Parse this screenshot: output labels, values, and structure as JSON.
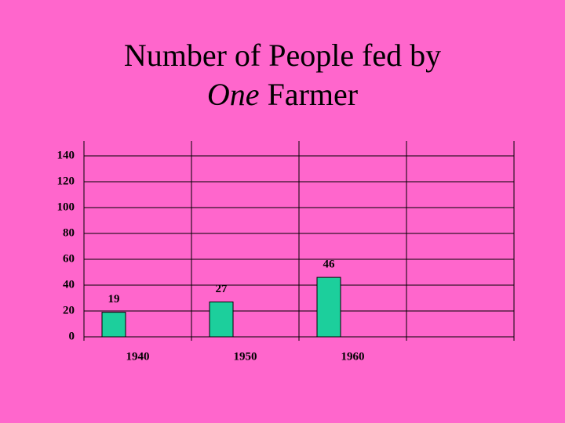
{
  "chart_data": {
    "type": "bar",
    "title": {
      "line1": "Number of People fed by",
      "line2_italic": "One",
      "line2": "Farmer"
    },
    "categories": [
      "1940",
      "1950",
      "1960",
      null
    ],
    "values": [
      19,
      27,
      46,
      null
    ],
    "color": "#1ccf9c",
    "ylim": [
      0,
      140
    ],
    "yticks": [
      0,
      20,
      40,
      60,
      80,
      100,
      120,
      140
    ],
    "grid": true
  }
}
